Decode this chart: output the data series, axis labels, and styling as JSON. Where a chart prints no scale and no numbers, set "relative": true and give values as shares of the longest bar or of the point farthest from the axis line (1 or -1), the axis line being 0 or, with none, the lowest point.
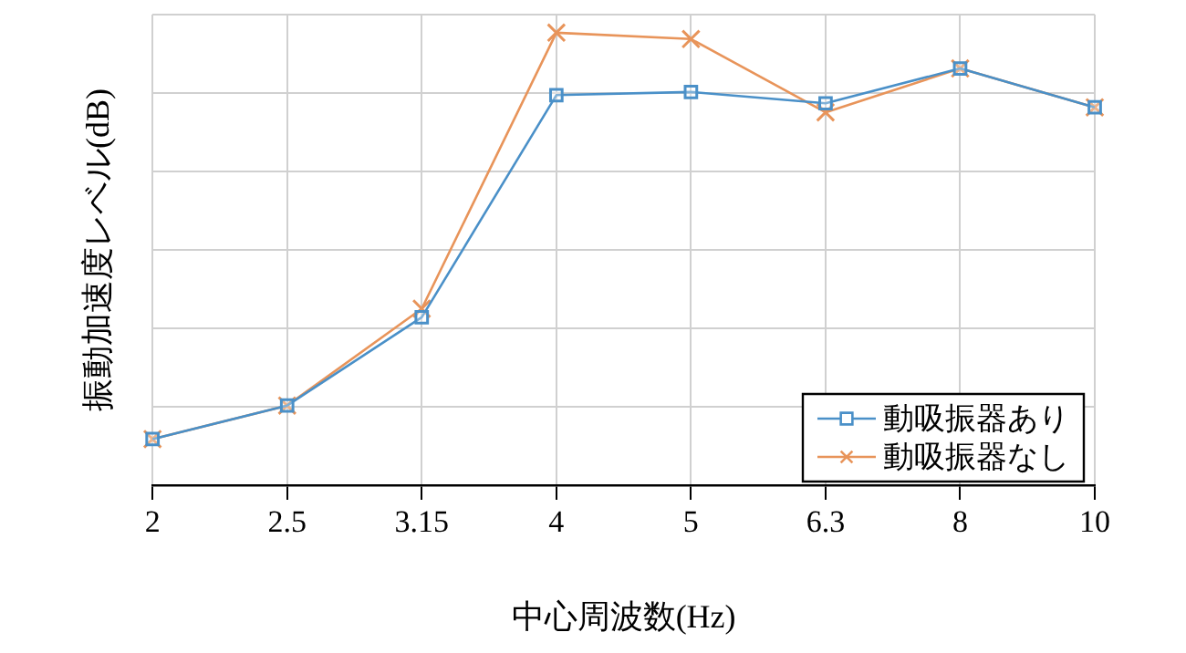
{
  "chart_data": {
    "type": "line",
    "relative": true,
    "xlabel": "中心周波数(Hz)",
    "ylabel": "振動加速度レベル(dB)",
    "categories": [
      "2",
      "2.5",
      "3.15",
      "4",
      "5",
      "6.3",
      "8",
      "10"
    ],
    "series": [
      {
        "name": "動吸振器あり",
        "color": "#4a90c8",
        "marker": "square",
        "values": [
          0.102,
          0.176,
          0.371,
          0.862,
          0.869,
          0.844,
          0.921,
          0.835
        ]
      },
      {
        "name": "動吸振器なし",
        "color": "#e8945a",
        "marker": "cross",
        "values": [
          0.102,
          0.176,
          0.39,
          1,
          0.986,
          0.824,
          0.921,
          0.835
        ]
      }
    ],
    "grid": true,
    "legend": "bottom right",
    "line_style": "solid"
  }
}
